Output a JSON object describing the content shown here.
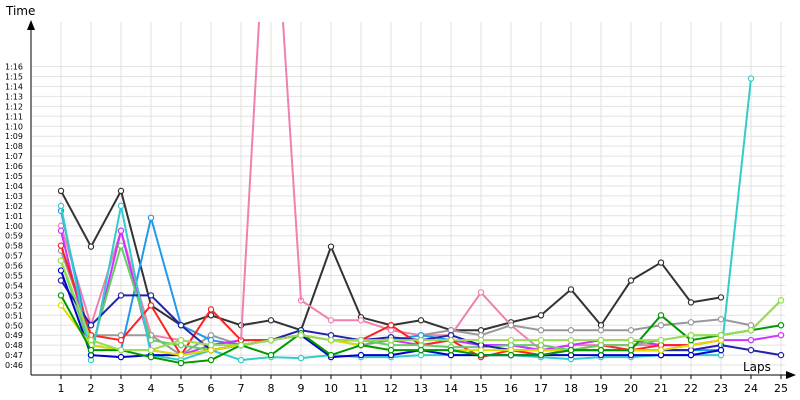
{
  "chart_data": {
    "type": "line",
    "title": "",
    "ylabel": "Time",
    "xlabel": "Laps",
    "x": [
      1,
      2,
      3,
      4,
      5,
      6,
      7,
      8,
      9,
      10,
      11,
      12,
      13,
      14,
      15,
      16,
      17,
      18,
      19,
      20,
      21,
      22,
      23,
      24,
      25
    ],
    "x_tick_labels": [
      "1",
      "2",
      "3",
      "4",
      "5",
      "6",
      "7",
      "8",
      "9",
      "10",
      "11",
      "12",
      "13",
      "14",
      "15",
      "16",
      "17",
      "18",
      "19",
      "20",
      "21",
      "22",
      "23",
      "24",
      "25"
    ],
    "y_tick_labels": [
      "0:46",
      "0:47",
      "0:48",
      "0:49",
      "0:50",
      "0:51",
      "0:52",
      "0:53",
      "0:54",
      "0:55",
      "0:56",
      "0:57",
      "0:58",
      "0:59",
      "1:00",
      "1:01",
      "1:02",
      "1:03",
      "1:04",
      "1:05",
      "1:06",
      "1:07",
      "1:08",
      "1:09",
      "1:10",
      "1:11",
      "1:12",
      "1:13",
      "1:14",
      "1:15",
      "1:16"
    ],
    "ylim_seconds": [
      46,
      76
    ],
    "grid": true,
    "legend": "none",
    "series": [
      {
        "color": "#333333",
        "values": [
          63.5,
          57.9,
          63.5,
          52.0,
          50.0,
          51.0,
          50.0,
          50.5,
          49.5,
          57.9,
          50.8,
          50.0,
          50.5,
          49.5,
          49.5,
          50.3,
          51.0,
          53.6,
          50.0,
          54.5,
          56.3,
          52.3,
          52.8,
          null,
          null
        ]
      },
      {
        "color": "#f080b0",
        "values": [
          60.0,
          50.0,
          59.5,
          49.0,
          48.5,
          48.0,
          48.5,
          null,
          52.5,
          50.5,
          50.5,
          49.5,
          49.0,
          49.0,
          53.3,
          50.0,
          47.5,
          48.0,
          48.0,
          48.0,
          48.0,
          48.0,
          48.5,
          null,
          null
        ]
      },
      {
        "color": "#999999",
        "values": [
          57.5,
          49.0,
          49.0,
          49.0,
          47.0,
          49.0,
          48.0,
          48.5,
          49.0,
          48.5,
          48.0,
          48.5,
          49.0,
          49.5,
          49.0,
          50.0,
          49.5,
          49.5,
          49.5,
          49.5,
          50.0,
          50.3,
          50.6,
          50.0,
          null
        ]
      },
      {
        "color": "#2299ee",
        "values": [
          61.5,
          48.0,
          47.5,
          60.8,
          50.0,
          48.5,
          48.0,
          48.5,
          49.0,
          48.5,
          48.5,
          48.5,
          49.0,
          48.5,
          48.0,
          48.0,
          47.5,
          47.5,
          47.5,
          47.5,
          47.5,
          47.5,
          47.5,
          null,
          null
        ]
      },
      {
        "color": "#cc33ff",
        "values": [
          59.5,
          47.0,
          59.5,
          47.5,
          47.0,
          48.0,
          48.5,
          48.5,
          49.0,
          48.5,
          48.5,
          48.5,
          48.0,
          48.5,
          48.0,
          48.0,
          47.5,
          48.0,
          48.5,
          48.5,
          48.0,
          48.0,
          48.5,
          48.5,
          49.0
        ]
      },
      {
        "color": "#ff2222",
        "values": [
          58.0,
          49.0,
          48.5,
          52.0,
          47.0,
          51.6,
          48.5,
          48.5,
          49.0,
          48.5,
          48.5,
          50.0,
          48.0,
          48.5,
          46.8,
          47.5,
          47.0,
          47.5,
          48.0,
          47.5,
          48.0,
          48.0,
          48.5,
          null,
          null
        ]
      },
      {
        "color": "#66cc66",
        "values": [
          56.5,
          47.5,
          58.0,
          48.5,
          48.0,
          47.5,
          48.0,
          48.5,
          49.0,
          48.5,
          48.5,
          48.0,
          48.0,
          47.8,
          47.8,
          48.0,
          48.0,
          47.5,
          48.0,
          48.0,
          48.5,
          49.0,
          49.0,
          49.5,
          52.5
        ]
      },
      {
        "color": "#2222aa",
        "values": [
          54.5,
          50.0,
          53.0,
          53.0,
          50.0,
          47.5,
          48.0,
          48.5,
          49.5,
          49.0,
          48.5,
          48.8,
          48.5,
          49.0,
          48.0,
          47.5,
          47.5,
          47.5,
          47.5,
          47.5,
          47.5,
          47.5,
          48.0,
          47.5,
          47.0
        ]
      },
      {
        "color": "#33cccc",
        "values": [
          62.0,
          46.5,
          62.0,
          47.0,
          46.5,
          47.5,
          46.5,
          46.8,
          46.7,
          47.0,
          46.8,
          46.8,
          47.0,
          47.0,
          47.0,
          47.0,
          46.8,
          46.6,
          46.8,
          46.8,
          47.0,
          47.0,
          47.0,
          74.8,
          null
        ]
      },
      {
        "color": "#0000cc",
        "values": [
          55.5,
          47.0,
          46.8,
          47.0,
          47.0,
          47.5,
          48.0,
          48.5,
          49.0,
          46.8,
          47.0,
          47.0,
          47.5,
          47.0,
          47.0,
          47.0,
          47.0,
          47.0,
          47.0,
          47.0,
          47.0,
          47.0,
          47.5,
          null,
          null
        ]
      },
      {
        "color": "#dddd00",
        "values": [
          52.0,
          48.0,
          47.5,
          47.5,
          47.0,
          47.5,
          48.0,
          48.5,
          49.0,
          48.5,
          48.0,
          47.5,
          47.5,
          47.5,
          47.5,
          47.5,
          47.5,
          47.5,
          47.5,
          47.5,
          47.5,
          48.0,
          48.5,
          null,
          null
        ]
      },
      {
        "color": "#009900",
        "values": [
          53.0,
          47.5,
          47.5,
          46.8,
          46.2,
          46.5,
          48.0,
          47.0,
          49.2,
          47.0,
          48.0,
          47.5,
          47.5,
          47.5,
          47.0,
          47.0,
          47.0,
          47.5,
          47.5,
          47.5,
          51.0,
          48.5,
          49.0,
          49.5,
          50.0
        ]
      },
      {
        "color": "#99dd55",
        "values": [
          56.5,
          48.5,
          47.5,
          47.5,
          48.5,
          48.0,
          48.0,
          48.5,
          49.0,
          48.5,
          48.5,
          48.5,
          48.5,
          48.5,
          48.5,
          48.5,
          48.5,
          48.5,
          48.5,
          48.5,
          48.5,
          49.0,
          49.0,
          49.5,
          52.5
        ]
      }
    ],
    "spike": {
      "color": "#f080b0",
      "from_x": 7,
      "to_x": 9,
      "note": ""
    }
  }
}
